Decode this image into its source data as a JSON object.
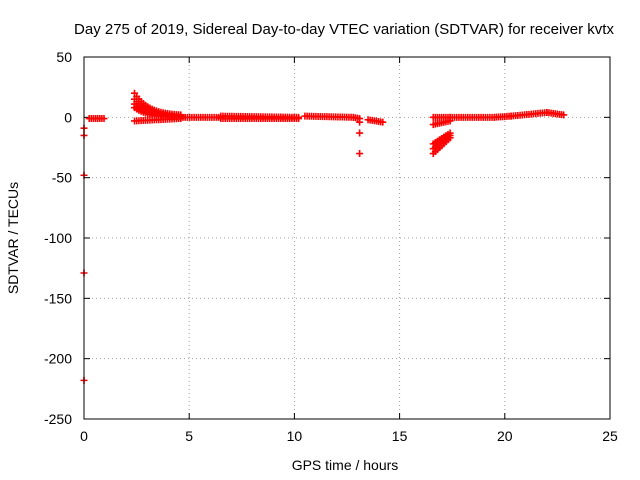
{
  "chart_data": {
    "type": "scatter",
    "title": "Day 275 of 2019, Sidereal Day-to-day VTEC variation (SDTVAR) for receiver kvtx",
    "xlabel": "GPS time / hours",
    "ylabel": "SDTVAR / TECUs",
    "xlim": [
      0,
      25
    ],
    "ylim": [
      -250,
      50
    ],
    "xticks": [
      "0",
      "5",
      "10",
      "15",
      "20",
      "25"
    ],
    "yticks": [
      "50",
      "0",
      "-50",
      "-100",
      "-150",
      "-200",
      "-250"
    ],
    "grid": true,
    "marker": "+",
    "series": [
      {
        "name": "SDTVAR",
        "color": "#ff0000",
        "outliers": [
          [
            0.0,
            -9
          ],
          [
            0.0,
            -15
          ],
          [
            0.0,
            -48
          ],
          [
            0.0,
            -129
          ],
          [
            0.0,
            -218
          ],
          [
            13.1,
            -4
          ],
          [
            13.1,
            -13
          ],
          [
            13.1,
            -30
          ]
        ],
        "segments": [
          {
            "x": [
              0.25,
              0.95
            ],
            "y": [
              -1,
              -1
            ]
          },
          {
            "x": [
              2.4,
              4.6
            ],
            "y": [
              20,
              2
            ]
          },
          {
            "x": [
              2.4,
              4.6
            ],
            "y": [
              15,
              1
            ]
          },
          {
            "x": [
              2.4,
              4.6
            ],
            "y": [
              11,
              0
            ]
          },
          {
            "x": [
              2.4,
              4.6
            ],
            "y": [
              8,
              0
            ]
          },
          {
            "x": [
              2.4,
              4.6
            ],
            "y": [
              -3,
              -1
            ]
          },
          {
            "x": [
              4.6,
              6.5
            ],
            "y": [
              0,
              0
            ]
          },
          {
            "x": [
              6.5,
              10.2
            ],
            "y": [
              1,
              0
            ]
          },
          {
            "x": [
              6.5,
              10.2
            ],
            "y": [
              -1,
              -1
            ]
          },
          {
            "x": [
              10.5,
              12.8
            ],
            "y": [
              1,
              0
            ]
          },
          {
            "x": [
              12.8,
              13.1
            ],
            "y": [
              0,
              -1
            ]
          },
          {
            "x": [
              13.5,
              14.2
            ],
            "y": [
              -2,
              -4
            ]
          },
          {
            "x": [
              16.6,
              17.4
            ],
            "y": [
              -30,
              -17
            ]
          },
          {
            "x": [
              16.6,
              17.4
            ],
            "y": [
              -26,
              -15
            ]
          },
          {
            "x": [
              16.6,
              17.4
            ],
            "y": [
              -22,
              -13
            ]
          },
          {
            "x": [
              16.6,
              17.4
            ],
            "y": [
              -6,
              -3
            ]
          },
          {
            "x": [
              16.6,
              17.4
            ],
            "y": [
              0,
              0
            ]
          },
          {
            "x": [
              17.4,
              19.5
            ],
            "y": [
              0,
              0
            ]
          },
          {
            "x": [
              19.5,
              20.3
            ],
            "y": [
              0,
              1
            ]
          },
          {
            "x": [
              20.3,
              22.0
            ],
            "y": [
              1,
              4
            ]
          },
          {
            "x": [
              22.0,
              22.8
            ],
            "y": [
              4,
              2
            ]
          }
        ]
      }
    ]
  }
}
